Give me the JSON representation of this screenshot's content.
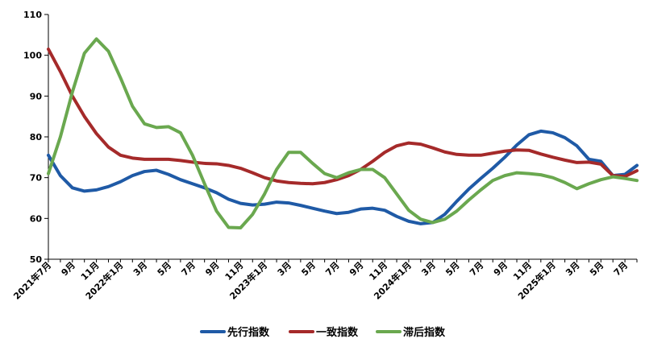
{
  "chart_data": {
    "type": "line",
    "x": [
      "2021年7月",
      "2021年8月",
      "2021年9月",
      "2021年10月",
      "2021年11月",
      "2021年12月",
      "2022年1月",
      "2022年2月",
      "2022年3月",
      "2022年4月",
      "2022年5月",
      "2022年6月",
      "2022年7月",
      "2022年8月",
      "2022年9月",
      "2022年10月",
      "2022年11月",
      "2022年12月",
      "2023年1月",
      "2023年2月",
      "2023年3月",
      "2023年4月",
      "2023年5月",
      "2023年6月",
      "2023年7月",
      "2023年8月",
      "2023年9月",
      "2023年10月",
      "2023年11月",
      "2023年12月",
      "2024年1月",
      "2024年2月",
      "2024年3月",
      "2024年4月",
      "2024年5月",
      "2024年6月",
      "2024年7月",
      "2024年8月",
      "2024年9月",
      "2024年10月",
      "2024年11月",
      "2024年12月",
      "2025年1月",
      "2025年2月",
      "2025年3月",
      "2025年4月",
      "2025年5月",
      "2025年6月",
      "2025年7月",
      "2025年8月"
    ],
    "tick_labels": [
      "2021年7月",
      "9月",
      "11月",
      "2022年1月",
      "3月",
      "5月",
      "7月",
      "9月",
      "11月",
      "2023年1月",
      "3月",
      "5月",
      "7月",
      "9月",
      "11月",
      "2024年1月",
      "3月",
      "5月",
      "7月",
      "9月",
      "11月",
      "2025年1月",
      "3月",
      "5月",
      "7月"
    ],
    "ylim": [
      50,
      110
    ],
    "yticks": [
      50,
      60,
      70,
      80,
      90,
      100,
      110
    ],
    "legend_position": "bottom",
    "grid": false,
    "series": [
      {
        "name": "先行指数",
        "color": "#1f5aa6",
        "values": [
          75.5,
          70.5,
          67.5,
          66.7,
          67.0,
          67.8,
          69.0,
          70.5,
          71.5,
          71.8,
          70.8,
          69.5,
          68.5,
          67.5,
          66.3,
          64.7,
          63.7,
          63.3,
          63.5,
          64.0,
          63.8,
          63.2,
          62.5,
          61.8,
          61.2,
          61.5,
          62.3,
          62.5,
          62.0,
          60.5,
          59.3,
          58.7,
          59.0,
          61.0,
          64.2,
          67.2,
          69.8,
          72.3,
          75.0,
          78.0,
          80.5,
          81.4,
          81.0,
          79.8,
          77.8,
          74.5,
          74.0,
          70.5,
          70.8,
          73.0
        ]
      },
      {
        "name": "一致指数",
        "color": "#a52a2a",
        "values": [
          101.5,
          96.0,
          90.0,
          85.0,
          80.8,
          77.5,
          75.5,
          74.8,
          74.5,
          74.5,
          74.5,
          74.2,
          73.8,
          73.5,
          73.4,
          73.0,
          72.3,
          71.2,
          70.0,
          69.2,
          68.8,
          68.6,
          68.5,
          68.8,
          69.5,
          70.5,
          72.0,
          74.0,
          76.2,
          77.8,
          78.5,
          78.2,
          77.3,
          76.3,
          75.7,
          75.5,
          75.5,
          76.0,
          76.5,
          76.8,
          76.7,
          75.8,
          75.0,
          74.3,
          73.7,
          73.8,
          73.3,
          70.5,
          70.3,
          71.7
        ]
      },
      {
        "name": "滞后指数",
        "color": "#6aa84f",
        "values": [
          71.0,
          80.0,
          91.0,
          100.5,
          104.0,
          101.0,
          94.5,
          87.5,
          83.2,
          82.3,
          82.5,
          81.0,
          75.5,
          68.5,
          61.8,
          57.8,
          57.7,
          61.0,
          66.0,
          72.0,
          76.2,
          76.2,
          73.5,
          71.0,
          70.0,
          71.2,
          72.0,
          72.0,
          70.0,
          66.0,
          62.0,
          59.8,
          59.0,
          59.8,
          61.8,
          64.5,
          67.0,
          69.3,
          70.5,
          71.2,
          71.0,
          70.7,
          70.0,
          68.8,
          67.3,
          68.5,
          69.5,
          70.2,
          69.8,
          69.3
        ]
      }
    ]
  }
}
